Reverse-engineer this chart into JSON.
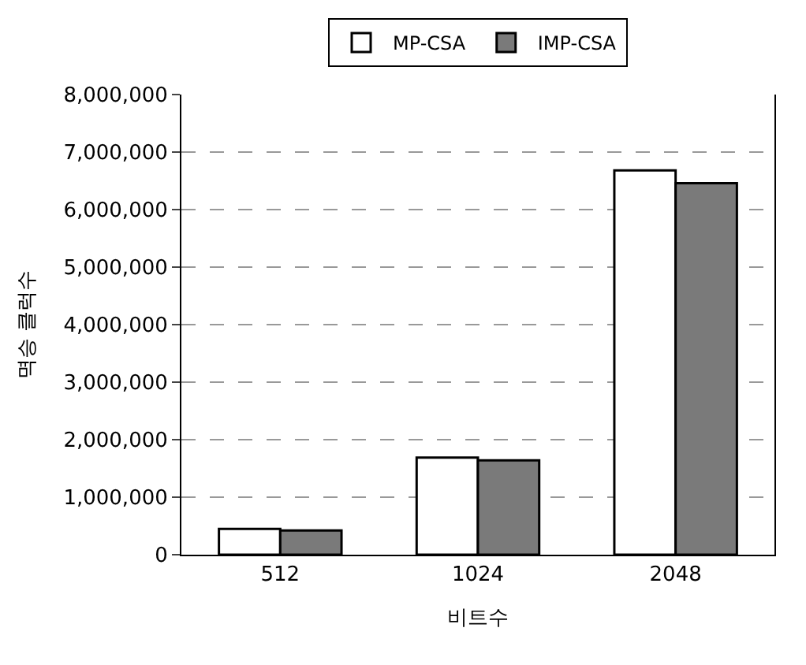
{
  "chart_data": {
    "type": "bar",
    "xlabel": "비트수",
    "ylabel": "멱승 클럭수",
    "categories": [
      "512",
      "1024",
      "2048"
    ],
    "series": [
      {
        "name": "MP-CSA",
        "color": "#ffffff",
        "values": [
          450000,
          1690000,
          6680000
        ]
      },
      {
        "name": "IMP-CSA",
        "color": "#7a7a7a",
        "values": [
          420000,
          1640000,
          6460000
        ]
      }
    ],
    "ylim": [
      0,
      8000000
    ],
    "yticks": [
      {
        "value": 0,
        "label": "0"
      },
      {
        "value": 1000000,
        "label": "1,000,000"
      },
      {
        "value": 2000000,
        "label": "2,000,000"
      },
      {
        "value": 3000000,
        "label": "3,000,000"
      },
      {
        "value": 4000000,
        "label": "4,000,000"
      },
      {
        "value": 5000000,
        "label": "5,000,000"
      },
      {
        "value": 6000000,
        "label": "6,000,000"
      },
      {
        "value": 7000000,
        "label": "7,000,000"
      },
      {
        "value": 8000000,
        "label": "8,000,000"
      }
    ],
    "grid": "y",
    "legend": "top"
  }
}
